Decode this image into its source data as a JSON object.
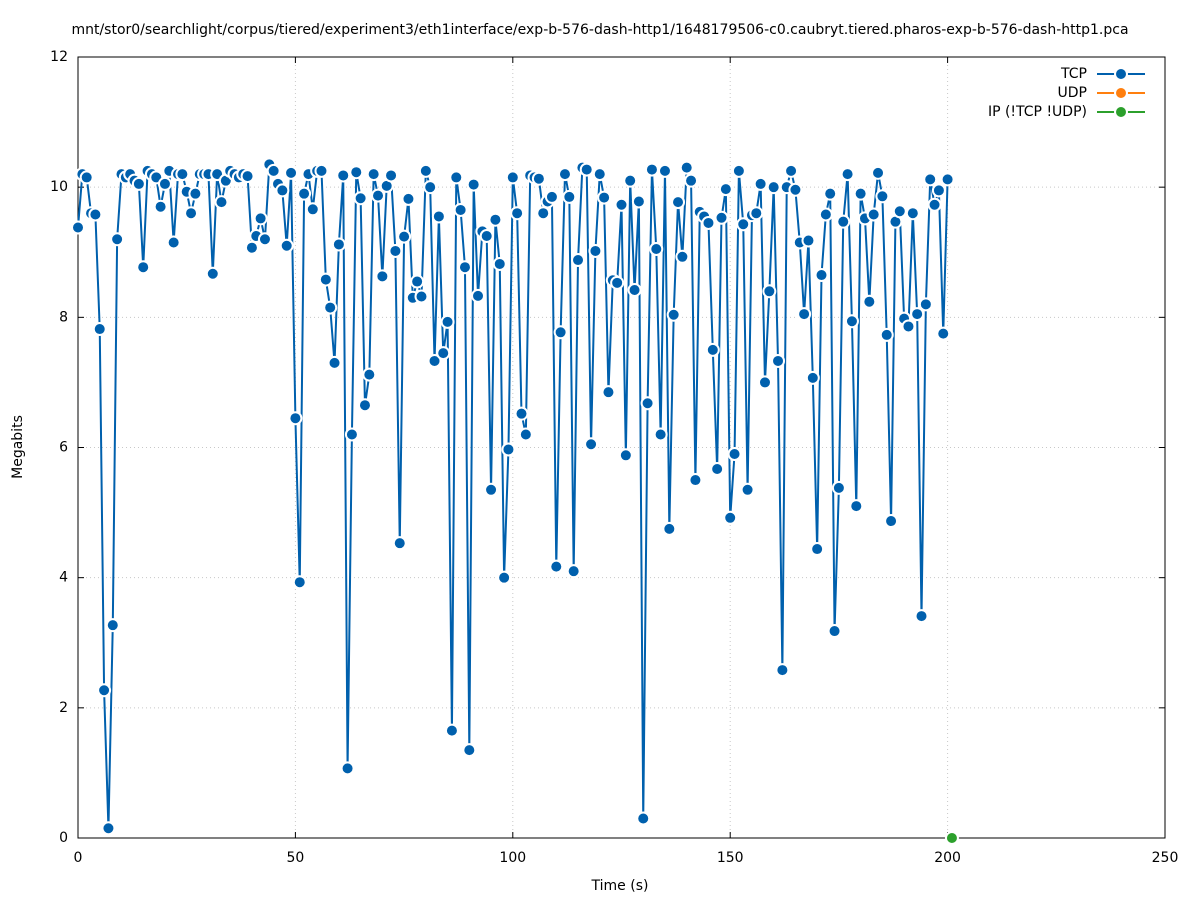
{
  "chart_data": {
    "type": "line",
    "title": "mnt/stor0/searchlight/corpus/tiered/experiment3/eth1interface/exp-b-576-dash-http1/1648179506-c0.caubryt.tiered.pharos-exp-b-576-dash-http1.pca",
    "x_label": "Time (s)",
    "y_label": "Megabits",
    "xlim": [
      0,
      250
    ],
    "xticks": [
      0,
      50,
      100,
      150,
      200,
      250
    ],
    "ylim": [
      0,
      12
    ],
    "yticks": [
      0,
      2,
      4,
      6,
      8,
      10,
      12
    ],
    "grid": true,
    "legend": "top-right",
    "series": [
      {
        "name": "TCP",
        "color": "#0060ad",
        "x": [
          0,
          1,
          2,
          3,
          4,
          5,
          6,
          7,
          8,
          9,
          10,
          11,
          12,
          13,
          14,
          15,
          16,
          17,
          18,
          19,
          20,
          21,
          22,
          23,
          24,
          25,
          26,
          27,
          28,
          29,
          30,
          31,
          32,
          33,
          34,
          35,
          36,
          37,
          38,
          39,
          40,
          41,
          42,
          43,
          44,
          45,
          46,
          47,
          48,
          49,
          50,
          51,
          52,
          53,
          54,
          55,
          56,
          57,
          58,
          59,
          60,
          61,
          62,
          63,
          64,
          65,
          66,
          67,
          68,
          69,
          70,
          71,
          72,
          73,
          74,
          75,
          76,
          77,
          78,
          79,
          80,
          81,
          82,
          83,
          84,
          85,
          86,
          87,
          88,
          89,
          90,
          91,
          92,
          93,
          94,
          95,
          96,
          97,
          98,
          99,
          100,
          101,
          102,
          103,
          104,
          105,
          106,
          107,
          108,
          109,
          110,
          111,
          112,
          113,
          114,
          115,
          116,
          117,
          118,
          119,
          120,
          121,
          122,
          123,
          124,
          125,
          126,
          127,
          128,
          129,
          130,
          131,
          132,
          133,
          134,
          135,
          136,
          137,
          138,
          139,
          140,
          141,
          142,
          143,
          144,
          145,
          146,
          147,
          148,
          149,
          150,
          151,
          152,
          153,
          154,
          155,
          156,
          157,
          158,
          159,
          160,
          161,
          162,
          163,
          164,
          165,
          166,
          167,
          168,
          169,
          170,
          171,
          172,
          173,
          174,
          175,
          176,
          177,
          178,
          179,
          180,
          181,
          182,
          183,
          184,
          185,
          186,
          187,
          188,
          189,
          190,
          191,
          192,
          193,
          194,
          195,
          196,
          197,
          198,
          199,
          200
        ],
        "values": [
          9.38,
          10.2,
          10.15,
          9.6,
          9.58,
          7.82,
          2.27,
          0.15,
          3.27,
          9.2,
          10.2,
          10.15,
          10.2,
          10.1,
          10.05,
          8.77,
          10.25,
          10.2,
          10.15,
          9.7,
          10.05,
          10.25,
          9.15,
          10.2,
          10.2,
          9.93,
          9.6,
          9.9,
          10.2,
          10.2,
          10.2,
          8.67,
          10.2,
          9.77,
          10.1,
          10.25,
          10.2,
          10.15,
          10.2,
          10.17,
          9.07,
          9.25,
          9.52,
          9.2,
          10.35,
          10.25,
          10.05,
          9.95,
          9.1,
          10.22,
          6.45,
          3.93,
          9.9,
          10.2,
          9.66,
          10.25,
          10.25,
          8.58,
          8.15,
          7.3,
          9.12,
          10.18,
          1.07,
          6.2,
          10.23,
          9.83,
          6.65,
          7.12,
          10.2,
          9.87,
          8.63,
          10.02,
          10.18,
          9.02,
          4.53,
          9.24,
          9.82,
          8.3,
          8.55,
          8.32,
          10.25,
          10.0,
          7.33,
          9.55,
          7.45,
          7.93,
          1.65,
          10.15,
          9.65,
          8.77,
          1.35,
          10.04,
          8.33,
          9.32,
          9.25,
          5.35,
          9.5,
          8.82,
          4.0,
          5.97,
          10.15,
          9.6,
          6.52,
          6.2,
          10.18,
          10.15,
          10.13,
          9.6,
          9.78,
          9.85,
          4.17,
          7.77,
          10.2,
          9.85,
          4.1,
          8.88,
          10.3,
          10.27,
          6.05,
          9.02,
          10.2,
          9.84,
          6.85,
          8.57,
          8.53,
          9.73,
          5.88,
          10.1,
          8.42,
          9.78,
          0.3,
          6.68,
          10.27,
          9.05,
          6.2,
          10.25,
          4.75,
          8.04,
          9.77,
          8.93,
          10.3,
          10.1,
          5.5,
          9.62,
          9.55,
          9.45,
          7.5,
          5.67,
          9.53,
          9.97,
          4.92,
          5.9,
          10.25,
          9.43,
          5.35,
          9.57,
          9.6,
          10.05,
          7.0,
          8.4,
          10.0,
          7.33,
          2.58,
          10.0,
          10.25,
          9.96,
          9.15,
          8.05,
          9.18,
          7.07,
          4.44,
          8.65,
          9.58,
          9.9,
          3.18,
          5.38,
          9.47,
          10.2,
          7.94,
          5.1,
          9.9,
          9.52,
          8.24,
          9.58,
          10.22,
          9.86,
          7.73,
          4.87,
          9.47,
          9.63,
          7.98,
          7.86,
          9.6,
          8.05,
          3.41,
          8.2,
          10.12,
          9.73,
          9.95,
          7.75,
          10.12
        ]
      },
      {
        "name": "UDP",
        "color": "#ff7f0e",
        "x": [],
        "values": []
      },
      {
        "name": "IP (!TCP  !UDP)",
        "color": "#2ca02c",
        "x": [
          201
        ],
        "values": [
          0
        ]
      }
    ]
  }
}
